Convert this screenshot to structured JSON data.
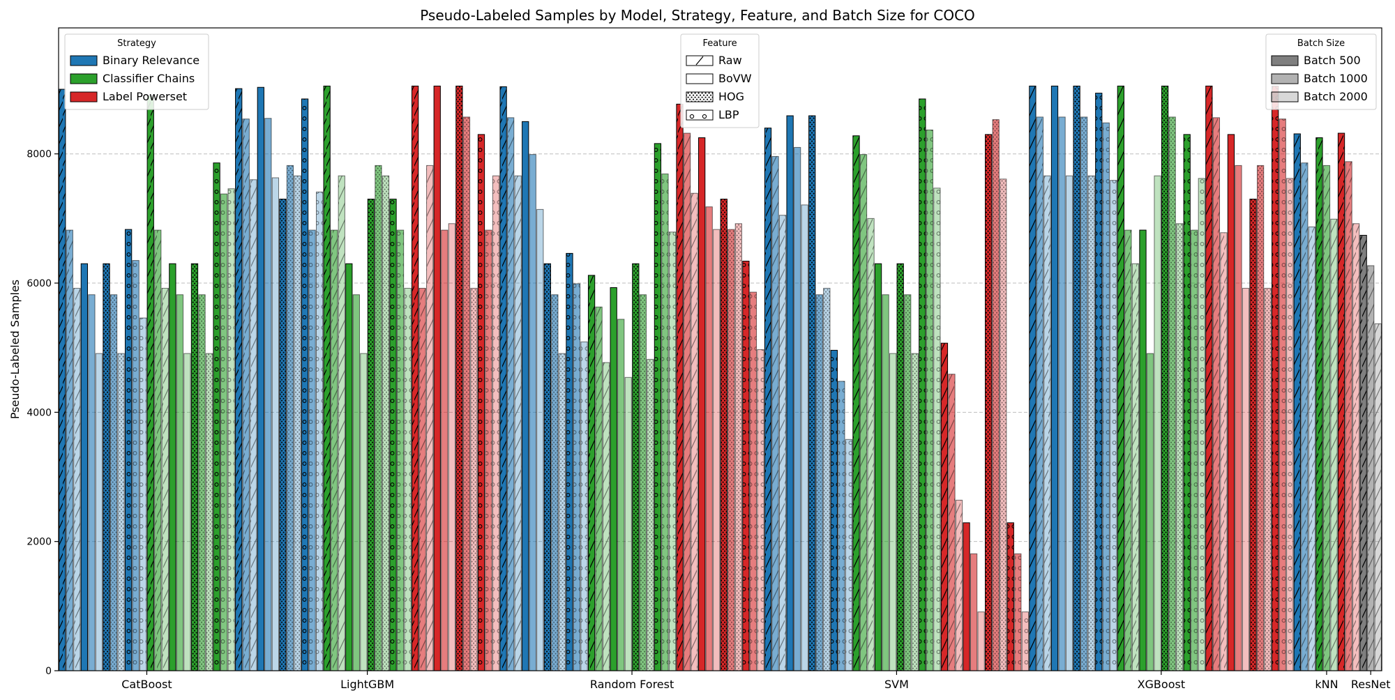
{
  "chart_data": {
    "type": "bar",
    "title": "Pseudo-Labeled Samples by Model, Strategy, Feature, and Batch Size for COCO",
    "xlabel": "",
    "ylabel": "Pseudo-Labeled Samples",
    "ylim": [
      0,
      9950
    ],
    "yticks": [
      0,
      2000,
      4000,
      6000,
      8000
    ],
    "grid": true,
    "categories": [
      "CatBoost",
      "LightGBM",
      "Random Forest",
      "SVM",
      "XGBoost",
      "kNN",
      "ResNet"
    ],
    "strategy_order": [
      "Binary Relevance",
      "Classifier Chains",
      "Label Powerset"
    ],
    "feature_order": [
      "Raw",
      "BoVW",
      "HOG",
      "LBP"
    ],
    "batch_order": [
      "Batch 500",
      "Batch 1000",
      "Batch 2000"
    ],
    "strategy_colors": {
      "Binary Relevance": "#1f77b4",
      "Classifier Chains": "#2ca02c",
      "Label Powerset": "#d62728",
      "none": "#7f7f7f"
    },
    "legends": {
      "strategy": {
        "title": "Strategy",
        "placement": "top-left",
        "items": [
          "Binary Relevance",
          "Classifier Chains",
          "Label Powerset"
        ]
      },
      "feature": {
        "title": "Feature",
        "placement": "top-center",
        "items": [
          "Raw",
          "BoVW",
          "HOG",
          "LBP"
        ]
      },
      "batch": {
        "title": "Batch Size",
        "placement": "top-right",
        "items": [
          "Batch 500",
          "Batch 1000",
          "Batch 2000"
        ]
      }
    },
    "groups": [
      {
        "model": "CatBoost",
        "strategies": [
          {
            "strategy": "Binary Relevance",
            "features": {
              "Raw": [
                9000,
                6820,
                5920
              ],
              "BoVW": [
                6300,
                5820,
                4910
              ],
              "HOG": [
                6300,
                5820,
                4910
              ],
              "LBP": [
                6830,
                6350,
                5460
              ]
            }
          },
          {
            "strategy": "Classifier Chains",
            "features": {
              "Raw": [
                8900,
                6820,
                5920
              ],
              "BoVW": [
                6300,
                5820,
                4910
              ],
              "HOG": [
                6300,
                5820,
                4910
              ],
              "LBP": [
                7860,
                7380,
                7460
              ]
            }
          }
        ]
      },
      {
        "model": "LightGBM",
        "strategies": [
          {
            "strategy": "Binary Relevance",
            "features": {
              "Raw": [
                9010,
                8540,
                7600
              ],
              "BoVW": [
                9030,
                8550,
                7630
              ],
              "HOG": [
                7300,
                7820,
                7660
              ],
              "LBP": [
                8850,
                6820,
                7410
              ]
            }
          },
          {
            "strategy": "Classifier Chains",
            "features": {
              "Raw": [
                9050,
                6820,
                7660
              ],
              "BoVW": [
                6300,
                5820,
                4910
              ],
              "HOG": [
                7300,
                7820,
                7660
              ],
              "LBP": [
                7300,
                6820,
                5920
              ]
            }
          },
          {
            "strategy": "Label Powerset",
            "features": {
              "Raw": [
                9050,
                5920,
                7820
              ],
              "BoVW": [
                9050,
                6820,
                6920
              ],
              "HOG": [
                9050,
                8570,
                5920
              ],
              "LBP": [
                8300,
                6820,
                7660
              ]
            }
          }
        ]
      },
      {
        "model": "Random Forest",
        "strategies": [
          {
            "strategy": "Binary Relevance",
            "features": {
              "Raw": [
                9040,
                8560,
                7660
              ],
              "BoVW": [
                8500,
                7990,
                7140
              ],
              "HOG": [
                6300,
                5820,
                4910
              ],
              "LBP": [
                6460,
                5990,
                5090
              ]
            }
          },
          {
            "strategy": "Classifier Chains",
            "features": {
              "Raw": [
                6120,
                5630,
                4770
              ],
              "BoVW": [
                5930,
                5440,
                4540
              ],
              "HOG": [
                6300,
                5820,
                4820
              ],
              "LBP": [
                8160,
                7690,
                6790
              ]
            }
          },
          {
            "strategy": "Label Powerset",
            "features": {
              "Raw": [
                8770,
                8320,
                7390
              ],
              "BoVW": [
                8250,
                7180,
                6830
              ],
              "HOG": [
                7300,
                6830,
                6920
              ],
              "LBP": [
                6340,
                5860,
                4970
              ]
            }
          }
        ]
      },
      {
        "model": "SVM",
        "strategies": [
          {
            "strategy": "Binary Relevance",
            "features": {
              "Raw": [
                8400,
                7960,
                7050
              ],
              "BoVW": [
                8590,
                8100,
                7210
              ],
              "HOG": [
                8590,
                5820,
                5920
              ],
              "LBP": [
                4960,
                4480,
                3580
              ]
            }
          },
          {
            "strategy": "Classifier Chains",
            "features": {
              "Raw": [
                8280,
                7990,
                7000
              ],
              "BoVW": [
                6300,
                5820,
                4910
              ],
              "HOG": [
                6300,
                5820,
                4910
              ],
              "LBP": [
                8850,
                8370,
                7470
              ]
            }
          },
          {
            "strategy": "Label Powerset",
            "features": {
              "Raw": [
                5070,
                4590,
                2640
              ],
              "BoVW": [
                2290,
                1810,
                910
              ],
              "HOG": [
                8300,
                8530,
                7610
              ],
              "LBP": [
                2290,
                1810,
                910
              ]
            }
          }
        ]
      },
      {
        "model": "XGBoost",
        "strategies": [
          {
            "strategy": "Binary Relevance",
            "features": {
              "Raw": [
                9050,
                8570,
                7660
              ],
              "BoVW": [
                9050,
                8570,
                7660
              ],
              "HOG": [
                9050,
                8570,
                7660
              ],
              "LBP": [
                8940,
                8480,
                7590
              ]
            }
          },
          {
            "strategy": "Classifier Chains",
            "features": {
              "Raw": [
                9050,
                6820,
                6300
              ],
              "BoVW": [
                6820,
                4910,
                7660
              ],
              "HOG": [
                9050,
                8570,
                6920
              ],
              "LBP": [
                8300,
                6820,
                7620
              ]
            }
          },
          {
            "strategy": "Label Powerset",
            "features": {
              "Raw": [
                9050,
                8560,
                6780
              ],
              "BoVW": [
                8300,
                7820,
                5920
              ],
              "HOG": [
                7300,
                7820,
                5920
              ],
              "LBP": [
                9050,
                8540,
                7620
              ]
            }
          }
        ]
      },
      {
        "model": "kNN",
        "strategies": [
          {
            "strategy": "Binary Relevance",
            "features": {
              "Raw": [
                8310,
                7860,
                6870
              ]
            }
          },
          {
            "strategy": "Classifier Chains",
            "features": {
              "Raw": [
                8250,
                7820,
                6990
              ]
            }
          },
          {
            "strategy": "Label Powerset",
            "features": {
              "Raw": [
                8320,
                7880,
                6920
              ]
            }
          }
        ]
      },
      {
        "model": "ResNet",
        "strategies": [
          {
            "strategy": "none",
            "features": {
              "Raw": [
                6740,
                6270,
                5370
              ]
            }
          }
        ]
      }
    ]
  }
}
